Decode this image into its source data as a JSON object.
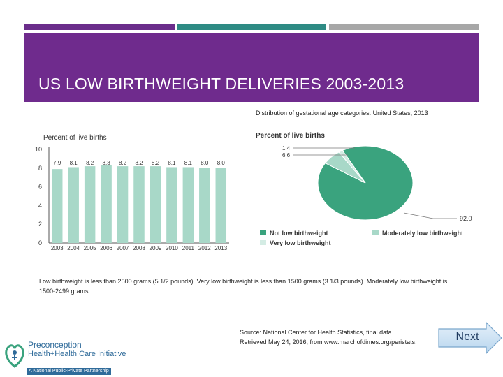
{
  "slide": {
    "title": "US LOW BIRTHWEIGHT DELIVERIES 2003-2013",
    "note": "Low birthweight is less than 2500 grams (5 1/2 pounds). Very low birthweight is less than 1500 grams (3 1/3 pounds). Moderately low birthweight is 1500-2499 grams.",
    "source_line1": "Source: National Center for Health Statistics, final data.",
    "source_line2": "Retrieved May 24, 2016, from www.marchofdimes.org/peristats.",
    "next_label": "Next",
    "colors": {
      "header": "#6f2b8d",
      "bar": "#a8d8c8",
      "pie_main": "#3aa37e",
      "pie_moderate": "#a8d8c8",
      "pie_very_low": "#d4ece4"
    }
  },
  "logo": {
    "line1": "Preconception",
    "line2": "Health+Health Care Initiative",
    "line3": "A National Public-Private Partnership",
    "icon": "heart-figure-icon"
  },
  "chart_data": [
    {
      "type": "bar",
      "ylabel": "Percent of live births",
      "ylim": [
        0,
        10
      ],
      "yticks": [
        0,
        2,
        4,
        6,
        8,
        10
      ],
      "categories": [
        "2003",
        "2004",
        "2005",
        "2006",
        "2007",
        "2008",
        "2009",
        "2010",
        "2011",
        "2012",
        "2013"
      ],
      "values": [
        7.9,
        8.1,
        8.2,
        8.3,
        8.2,
        8.2,
        8.2,
        8.1,
        8.1,
        8.0,
        8.0
      ],
      "value_labels": [
        "7.9",
        "8.1",
        "8.2",
        "8.3",
        "8.2",
        "8.2",
        "8.2",
        "8.1",
        "8.1",
        "8.0",
        "8.0"
      ],
      "grid": false
    },
    {
      "type": "pie",
      "title": "Distribution of gestational age categories: United States, 2013",
      "ylabel": "Percent of live births",
      "labels": [
        "Not low birthweight",
        "Moderately low birthweight",
        "Very low birthweight"
      ],
      "values": [
        92.0,
        6.6,
        1.4
      ],
      "value_labels": [
        "92.0",
        "6.6",
        "1.4"
      ],
      "legend_position": "bottom"
    }
  ]
}
